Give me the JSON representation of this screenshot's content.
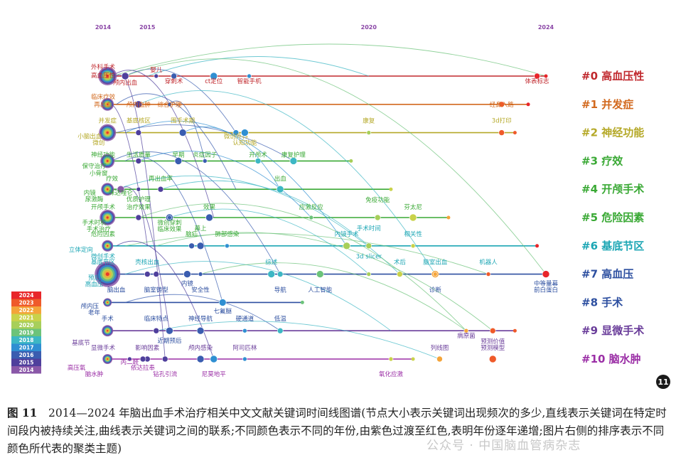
{
  "chart_data": {
    "type": "timeline",
    "years": [
      2014,
      2015,
      2016,
      2017,
      2018,
      2019,
      2020,
      2021,
      2022,
      2023,
      2024
    ],
    "axis_labels": [
      "2014",
      "2015",
      "2020",
      "2024"
    ],
    "legend": [
      {
        "year": "2024",
        "color": "#e8262a"
      },
      {
        "year": "2023",
        "color": "#ef5a2a"
      },
      {
        "year": "2022",
        "color": "#f4a43a"
      },
      {
        "year": "2021",
        "color": "#c9d24a"
      },
      {
        "year": "2020",
        "color": "#a7cf5a"
      },
      {
        "year": "2019",
        "color": "#6cc37a"
      },
      {
        "year": "2018",
        "color": "#3db7c4"
      },
      {
        "year": "2017",
        "color": "#2f8fd2"
      },
      {
        "year": "2016",
        "color": "#3a5db0"
      },
      {
        "year": "2015",
        "color": "#4f3f9c"
      },
      {
        "year": "2014",
        "color": "#8a58a8"
      }
    ],
    "clusters": [
      {
        "id": "#0",
        "name": "高血压性",
        "color": "#c0282d",
        "keywords": [
          {
            "t": "外科手术",
            "x": 2014.0,
            "dy": -10,
            "c": "#c0282d"
          },
          {
            "t": "高血压性",
            "x": 2014.0,
            "dy": 2,
            "c": "#c0282d"
          },
          {
            "t": "颅内出血",
            "x": 2014.5,
            "dy": 12,
            "c": "#c0282d"
          },
          {
            "t": "婴儿",
            "x": 2015.2,
            "dy": -6,
            "c": "#c0282d"
          },
          {
            "t": "穿刺术",
            "x": 2015.6,
            "dy": 10,
            "c": "#c0282d"
          },
          {
            "t": "ct定位",
            "x": 2016.5,
            "dy": 10,
            "c": "#c0282d"
          },
          {
            "t": "智能手机",
            "x": 2017.3,
            "dy": 10,
            "c": "#c0282d"
          },
          {
            "t": "体表标志",
            "x": 2023.8,
            "dy": 10,
            "c": "#c0282d"
          }
        ]
      },
      {
        "id": "#1",
        "name": "并发症",
        "color": "#d2691e",
        "keywords": [
          {
            "t": "临床疗效",
            "x": 2014.0,
            "dy": -8,
            "c": "#d2691e"
          },
          {
            "t": "再出血",
            "x": 2014.0,
            "dy": 3,
            "c": "#d2691e"
          },
          {
            "t": "颅内血肿",
            "x": 2014.8,
            "dy": 3,
            "c": "#d2691e"
          },
          {
            "t": "综合护理",
            "x": 2015.5,
            "dy": 3,
            "c": "#d2691e"
          },
          {
            "t": "经鼻入路",
            "x": 2023.0,
            "dy": 3,
            "c": "#d2691e"
          }
        ]
      },
      {
        "id": "#2",
        "name": "神经功能",
        "color": "#b5a929",
        "keywords": [
          {
            "t": "并发症",
            "x": 2014.1,
            "dy": -14,
            "c": "#b5a929"
          },
          {
            "t": "基底核区",
            "x": 2014.8,
            "dy": -14,
            "c": "#b5a929"
          },
          {
            "t": "围手术期",
            "x": 2015.8,
            "dy": -14,
            "c": "#b5a929"
          },
          {
            "t": "康复",
            "x": 2020.0,
            "dy": -14,
            "c": "#b5a929"
          },
          {
            "t": "3d打印",
            "x": 2023.0,
            "dy": -14,
            "c": "#b5a929"
          },
          {
            "t": "小脑出血",
            "x": 2013.7,
            "dy": 8,
            "c": "#b5a929"
          },
          {
            "t": "微创",
            "x": 2013.9,
            "dy": 17,
            "c": "#b5a929"
          },
          {
            "t": "微创外科",
            "x": 2017.0,
            "dy": 8,
            "c": "#b5a929"
          },
          {
            "t": "认知功能",
            "x": 2017.2,
            "dy": 17,
            "c": "#b5a929"
          }
        ]
      },
      {
        "id": "#3",
        "name": "疗效",
        "color": "#3aa935",
        "keywords": [
          {
            "t": "神经功能",
            "x": 2014.0,
            "dy": -6,
            "c": "#3aa935"
          },
          {
            "t": "生活质量",
            "x": 2014.8,
            "dy": -6,
            "c": "#3aa935"
          },
          {
            "t": "早期",
            "x": 2015.7,
            "dy": -6,
            "c": "#3aa935"
          },
          {
            "t": "炎症因子",
            "x": 2016.3,
            "dy": -6,
            "c": "#3aa935"
          },
          {
            "t": "开颅术",
            "x": 2017.5,
            "dy": -6,
            "c": "#3aa935"
          },
          {
            "t": "康复护理",
            "x": 2018.3,
            "dy": -6,
            "c": "#3aa935"
          },
          {
            "t": "保守治疗",
            "x": 2013.8,
            "dy": 10,
            "c": "#3aa935"
          },
          {
            "t": "小骨窗",
            "x": 2013.9,
            "dy": 20,
            "c": "#3aa935"
          }
        ]
      },
      {
        "id": "#4",
        "name": "开颅手术",
        "color": "#3aa935",
        "keywords": [
          {
            "t": "疗效",
            "x": 2014.2,
            "dy": -12,
            "c": "#3aa935"
          },
          {
            "t": "再出血率",
            "x": 2015.3,
            "dy": -12,
            "c": "#3aa935"
          },
          {
            "t": "出血",
            "x": 2018.0,
            "dy": -12,
            "c": "#3aa935"
          },
          {
            "t": "内镜",
            "x": 2013.7,
            "dy": 8,
            "c": "#3aa935"
          },
          {
            "t": "尿激酶",
            "x": 2013.8,
            "dy": 17,
            "c": "#3aa935"
          },
          {
            "t": "咪达唑仑",
            "x": 2014.4,
            "dy": 8,
            "c": "#3aa935"
          },
          {
            "t": "优质护理",
            "x": 2014.8,
            "dy": 17,
            "c": "#3aa935"
          }
        ]
      },
      {
        "id": "#5",
        "name": "危险因素",
        "color": "#3aa935",
        "keywords": [
          {
            "t": "开颅手术",
            "x": 2014.0,
            "dy": -12,
            "c": "#3aa935"
          },
          {
            "t": "治疗效果",
            "x": 2014.8,
            "dy": -12,
            "c": "#3aa935"
          },
          {
            "t": "效果",
            "x": 2016.4,
            "dy": -12,
            "c": "#3aa935"
          },
          {
            "t": "应激反应",
            "x": 2018.7,
            "dy": -12,
            "c": "#3aa935"
          },
          {
            "t": "免疫功能",
            "x": 2020.2,
            "dy": -22,
            "c": "#3aa935"
          },
          {
            "t": "芬太尼",
            "x": 2021.0,
            "dy": -12,
            "c": "#3aa935"
          },
          {
            "t": "手术时机",
            "x": 2013.8,
            "dy": 10,
            "c": "#3aa935"
          },
          {
            "t": "手术治疗",
            "x": 2013.9,
            "dy": 19,
            "c": "#3aa935"
          },
          {
            "t": "微创穿刺",
            "x": 2015.5,
            "dy": 10,
            "c": "#3aa935"
          },
          {
            "t": "临床效果",
            "x": 2015.5,
            "dy": 19,
            "c": "#3aa935"
          }
        ]
      },
      {
        "id": "#6",
        "name": "基底节区",
        "color": "#1ca6b4",
        "keywords": [
          {
            "t": "危险因素",
            "x": 2014.0,
            "dy": -14,
            "c": "#3aa935"
          },
          {
            "t": "脑疝",
            "x": 2016.0,
            "dy": -14,
            "c": "#3aa935"
          },
          {
            "t": "幕上",
            "x": 2016.2,
            "dy": -22,
            "c": "#3aa935"
          },
          {
            "t": "肺部感染",
            "x": 2016.8,
            "dy": -14,
            "c": "#3aa935"
          },
          {
            "t": "手术时间",
            "x": 2020.0,
            "dy": -22,
            "c": "#1ca6b4"
          },
          {
            "t": "内镜手术",
            "x": 2019.5,
            "dy": -14,
            "c": "#1ca6b4"
          },
          {
            "t": "相关性",
            "x": 2021.0,
            "dy": -14,
            "c": "#1ca6b4"
          },
          {
            "t": "立体定向",
            "x": 2013.5,
            "dy": 8,
            "c": "#1ca6b4"
          }
        ]
      },
      {
        "id": "#7",
        "name": "高血压",
        "color": "#2d4fa0",
        "keywords": [
          {
            "t": "微创手术",
            "x": 2014.0,
            "dy": -22,
            "c": "#1ca6b4"
          },
          {
            "t": "基底节区",
            "x": 2014.0,
            "dy": -14,
            "c": "#1ca6b4"
          },
          {
            "t": "预后",
            "x": 2013.8,
            "dy": 8,
            "c": "#1ca6b4"
          },
          {
            "t": "高血压",
            "x": 2013.8,
            "dy": 17,
            "c": "#1ca6b4"
          },
          {
            "t": "壳核出血",
            "x": 2015.0,
            "dy": -14,
            "c": "#1ca6b4"
          },
          {
            "t": "综述",
            "x": 2017.8,
            "dy": -14,
            "c": "#1ca6b4"
          },
          {
            "t": "3d slicer",
            "x": 2020.0,
            "dy": -22,
            "c": "#1ca6b4"
          },
          {
            "t": "术后",
            "x": 2020.7,
            "dy": -14,
            "c": "#1ca6b4"
          },
          {
            "t": "脑室出血",
            "x": 2021.5,
            "dy": -14,
            "c": "#1ca6b4"
          },
          {
            "t": "机器人",
            "x": 2022.7,
            "dy": -14,
            "c": "#1ca6b4"
          },
          {
            "t": "中等量幕",
            "x": 2024.0,
            "dy": 16,
            "c": "#2d4fa0"
          },
          {
            "t": "前白蛋白",
            "x": 2024.0,
            "dy": 25,
            "c": "#2d4fa0"
          },
          {
            "t": "脑出血",
            "x": 2014.3,
            "dy": 25,
            "c": "#2d4fa0"
          },
          {
            "t": "脑室铸型",
            "x": 2015.2,
            "dy": 25,
            "c": "#2d4fa0"
          },
          {
            "t": "内镜",
            "x": 2015.9,
            "dy": 16,
            "c": "#2d4fa0"
          },
          {
            "t": "安全性",
            "x": 2016.2,
            "dy": 25,
            "c": "#2d4fa0"
          },
          {
            "t": "导航",
            "x": 2018.0,
            "dy": 25,
            "c": "#2d4fa0"
          },
          {
            "t": "人工智能",
            "x": 2018.9,
            "dy": 25,
            "c": "#2d4fa0"
          },
          {
            "t": "诊断",
            "x": 2021.5,
            "dy": 25,
            "c": "#2d4fa0"
          }
        ]
      },
      {
        "id": "#8",
        "name": "手术",
        "color": "#2d4fa0",
        "keywords": [
          {
            "t": "颅内压",
            "x": 2013.7,
            "dy": 8,
            "c": "#2d4fa0"
          },
          {
            "t": "老年",
            "x": 2013.8,
            "dy": 17,
            "c": "#2d4fa0"
          },
          {
            "t": "七氟醚",
            "x": 2016.7,
            "dy": 15,
            "c": "#2d4fa0"
          }
        ]
      },
      {
        "id": "#9",
        "name": "显微手术",
        "color": "#6a3d9a",
        "keywords": [
          {
            "t": "手术",
            "x": 2014.1,
            "dy": -14,
            "c": "#2d4fa0"
          },
          {
            "t": "临床特点",
            "x": 2015.2,
            "dy": -14,
            "c": "#2d4fa0"
          },
          {
            "t": "神经导航",
            "x": 2016.2,
            "dy": -14,
            "c": "#2d4fa0"
          },
          {
            "t": "硬通道",
            "x": 2017.2,
            "dy": -14,
            "c": "#2d4fa0"
          },
          {
            "t": "低温",
            "x": 2018.0,
            "dy": -14,
            "c": "#2d4fa0"
          },
          {
            "t": "近期预后",
            "x": 2015.5,
            "dy": 17,
            "c": "#2d4fa0"
          },
          {
            "t": "病原菌",
            "x": 2022.2,
            "dy": 10,
            "c": "#6a3d9a"
          },
          {
            "t": "预测价值",
            "x": 2022.8,
            "dy": 18,
            "c": "#6a3d9a"
          },
          {
            "t": "基底节",
            "x": 2013.5,
            "dy": 20,
            "c": "#6a3d9a"
          }
        ]
      },
      {
        "id": "#10",
        "name": "脑水肿",
        "color": "#9b2fa6",
        "keywords": [
          {
            "t": "显微手术",
            "x": 2014.0,
            "dy": -13,
            "c": "#6a3d9a"
          },
          {
            "t": "影响因素",
            "x": 2015.0,
            "dy": -13,
            "c": "#6a3d9a"
          },
          {
            "t": "颅内感染",
            "x": 2016.2,
            "dy": -13,
            "c": "#6a3d9a"
          },
          {
            "t": "阿司匹林",
            "x": 2017.2,
            "dy": -13,
            "c": "#6a3d9a"
          },
          {
            "t": "列线图",
            "x": 2021.6,
            "dy": -13,
            "c": "#6a3d9a"
          },
          {
            "t": "预测模型",
            "x": 2022.8,
            "dy": -13,
            "c": "#6a3d9a"
          },
          {
            "t": "丙二醛",
            "x": 2014.6,
            "dy": 7,
            "c": "#9b2fa6"
          },
          {
            "t": "依达拉奉",
            "x": 2014.9,
            "dy": 15,
            "c": "#9b2fa6"
          },
          {
            "t": "高压氧",
            "x": 2013.4,
            "dy": 15,
            "c": "#9b2fa6"
          },
          {
            "t": "脑水肿",
            "x": 2013.8,
            "dy": 24,
            "c": "#9b2fa6"
          },
          {
            "t": "钻孔引流",
            "x": 2015.4,
            "dy": 24,
            "c": "#9b2fa6"
          },
          {
            "t": "尼莫地平",
            "x": 2016.5,
            "dy": 24,
            "c": "#9b2fa6"
          },
          {
            "t": "氧化应激",
            "x": 2020.5,
            "dy": 24,
            "c": "#9b2fa6"
          }
        ]
      }
    ],
    "lines": [
      {
        "cluster": 0,
        "from": 2014.0,
        "to": 2024.0
      },
      {
        "cluster": 1,
        "from": 2014.0,
        "to": 2023.6
      },
      {
        "cluster": 2,
        "from": 2014.0,
        "to": 2023.3
      },
      {
        "cluster": 3,
        "from": 2014.0,
        "to": 2019.6
      },
      {
        "cluster": 4,
        "from": 2014.0,
        "to": 2020.5
      },
      {
        "cluster": 5,
        "from": 2014.0,
        "to": 2021.8
      },
      {
        "cluster": 6,
        "from": 2014.0,
        "to": 2023.8
      },
      {
        "cluster": 7,
        "from": 2014.0,
        "to": 2024.0
      },
      {
        "cluster": 8,
        "from": 2014.0,
        "to": 2018.5
      },
      {
        "cluster": 9,
        "from": 2014.0,
        "to": 2023.3
      },
      {
        "cluster": 10,
        "from": 2014.0,
        "to": 2021.0
      }
    ]
  },
  "figure_badge": "11",
  "caption": {
    "label": "图 11",
    "text": "　2014—2024 年脑出血手术治疗相关中文文献关键词时间线图谱(节点大小表示关键词出现频次的多少,直线表示关键词在特定时间段内被持续关注,曲线表示关键词之间的联系;不同颜色表示不同的年份,由紫色过渡至红色,表明年份逐年递增;图片右侧的排序表示不同颜色所代表的聚类主题)"
  },
  "watermark": "公众号 · 中国脑血管病杂志"
}
